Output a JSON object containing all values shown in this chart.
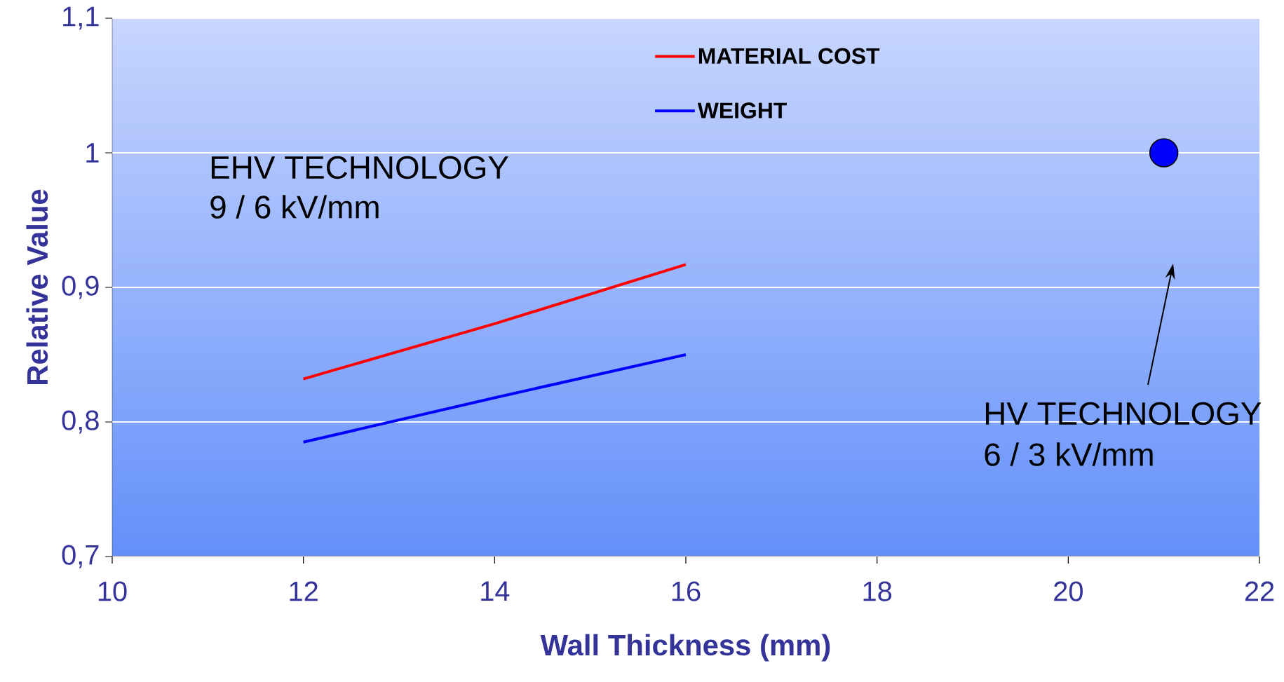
{
  "chart_data": {
    "type": "line",
    "xlabel": "Wall Thickness (mm)",
    "ylabel": "Relative Value",
    "xlim": [
      10,
      22
    ],
    "xticks": [
      10,
      12,
      14,
      16,
      18,
      20,
      22
    ],
    "ylim": [
      0.7,
      1.1
    ],
    "yticks": [
      {
        "value": 0.7,
        "label": "0,7"
      },
      {
        "value": 0.8,
        "label": "0,8"
      },
      {
        "value": 0.9,
        "label": "0,9"
      },
      {
        "value": 1,
        "label": "1"
      },
      {
        "value": 1.1,
        "label": "1,1"
      }
    ],
    "grid": "y",
    "legend": "top",
    "marker": "none",
    "series": [
      {
        "name": "MATERIAL COST",
        "color": "#ff0000",
        "x": [
          12,
          14,
          16
        ],
        "values": [
          0.832,
          0.873,
          0.917
        ]
      },
      {
        "name": "WEIGHT",
        "color": "#0000ff",
        "x": [
          12,
          14,
          16
        ],
        "values": [
          0.785,
          0.818,
          0.85
        ]
      },
      {
        "type": "scatter",
        "marker": "circle",
        "color": "#0000ff",
        "x": [
          21
        ],
        "values": [
          1.0
        ]
      }
    ],
    "annotations": [
      "EHV TECHNOLOGY",
      "9 / 6 kV/mm",
      "HV TECHNOLOGY",
      "6 / 3 kV/mm"
    ]
  }
}
